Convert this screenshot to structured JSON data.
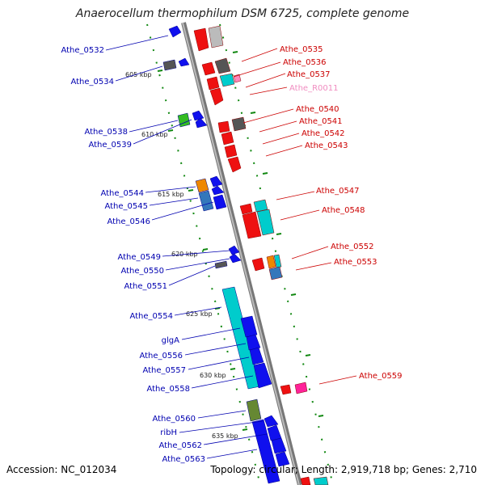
{
  "title": "Anaerocellum thermophilum DSM 6725, complete genome",
  "footer": {
    "accession": "Accession: NC_012034",
    "stats": "Topology: circular; Length: 2,919,718 bp; Genes: 2,710"
  },
  "scale_labels": [
    "605 kbp",
    "610 kbp",
    "615 kbp",
    "620 kbp",
    "625 kbp",
    "630 kbp",
    "635 kbp"
  ],
  "genes_left": [
    "Athe_0532",
    "Athe_0534",
    "Athe_0538",
    "Athe_0539",
    "Athe_0544",
    "Athe_0545",
    "Athe_0546",
    "Athe_0549",
    "Athe_0550",
    "Athe_0551",
    "Athe_0554",
    "glgA",
    "Athe_0556",
    "Athe_0557",
    "Athe_0558",
    "Athe_0560",
    "ribH",
    "Athe_0562",
    "Athe_0563"
  ],
  "genes_right": [
    "Athe_0535",
    "Athe_0536",
    "Athe_0537",
    "Athe_R0011",
    "Athe_0540",
    "Athe_0541",
    "Athe_0542",
    "Athe_0543",
    "Athe_0547",
    "Athe_0548",
    "Athe_0552",
    "Athe_0553",
    "Athe_0559"
  ],
  "colors": {
    "forward_strand": "#0000ff",
    "reverse_strand": "#ee0000",
    "rna": "#ff88bb",
    "cyan_feature": "#00cccc",
    "backbone": "#999999",
    "tick": "#118811"
  }
}
